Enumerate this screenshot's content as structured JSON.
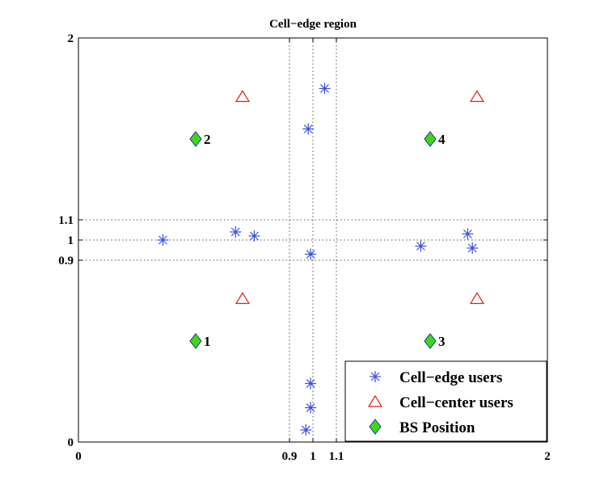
{
  "chart_data": {
    "type": "scatter",
    "title": "Cell−edge region",
    "xlabel": "",
    "ylabel": "",
    "xlim": [
      0,
      2
    ],
    "ylim": [
      0,
      2
    ],
    "x_ticks": [
      {
        "value": 0,
        "label": "0"
      },
      {
        "value": 0.9,
        "label": "0.9"
      },
      {
        "value": 1,
        "label": "1"
      },
      {
        "value": 1.1,
        "label": "1.1"
      },
      {
        "value": 2,
        "label": "2"
      }
    ],
    "y_ticks": [
      {
        "value": 0,
        "label": "0"
      },
      {
        "value": 0.9,
        "label": "0.9"
      },
      {
        "value": 1,
        "label": "1"
      },
      {
        "value": 1.1,
        "label": "1.1"
      },
      {
        "value": 2,
        "label": "2"
      }
    ],
    "reference_lines": {
      "x": [
        0.9,
        1,
        1.1
      ],
      "y": [
        0.9,
        1,
        1.1
      ],
      "style": "dotted"
    },
    "grid": false,
    "legend_position": "bottom-right",
    "series": [
      {
        "name": "Cell−edge users",
        "marker": "asterisk",
        "color": "#3a4fe0",
        "points": [
          [
            0.36,
            1.0
          ],
          [
            0.67,
            1.04
          ],
          [
            0.75,
            1.02
          ],
          [
            0.98,
            1.55
          ],
          [
            1.05,
            1.75
          ],
          [
            0.99,
            0.93
          ],
          [
            1.46,
            0.97
          ],
          [
            1.66,
            1.03
          ],
          [
            1.68,
            0.96
          ],
          [
            0.99,
            0.29
          ],
          [
            0.99,
            0.17
          ],
          [
            0.97,
            0.06
          ]
        ]
      },
      {
        "name": "Cell−center users",
        "marker": "triangle",
        "color": "#e02020",
        "points": [
          [
            0.7,
            1.71
          ],
          [
            1.7,
            1.71
          ],
          [
            0.7,
            0.71
          ],
          [
            1.7,
            0.71
          ]
        ]
      },
      {
        "name": "BS Position",
        "marker": "diamond",
        "color": "#3ed81a",
        "points": [
          [
            0.5,
            1.5
          ],
          [
            0.5,
            0.5
          ],
          [
            1.5,
            1.5
          ],
          [
            1.5,
            0.5
          ]
        ],
        "labels": [
          "2",
          "1",
          "4",
          "3"
        ]
      }
    ]
  }
}
